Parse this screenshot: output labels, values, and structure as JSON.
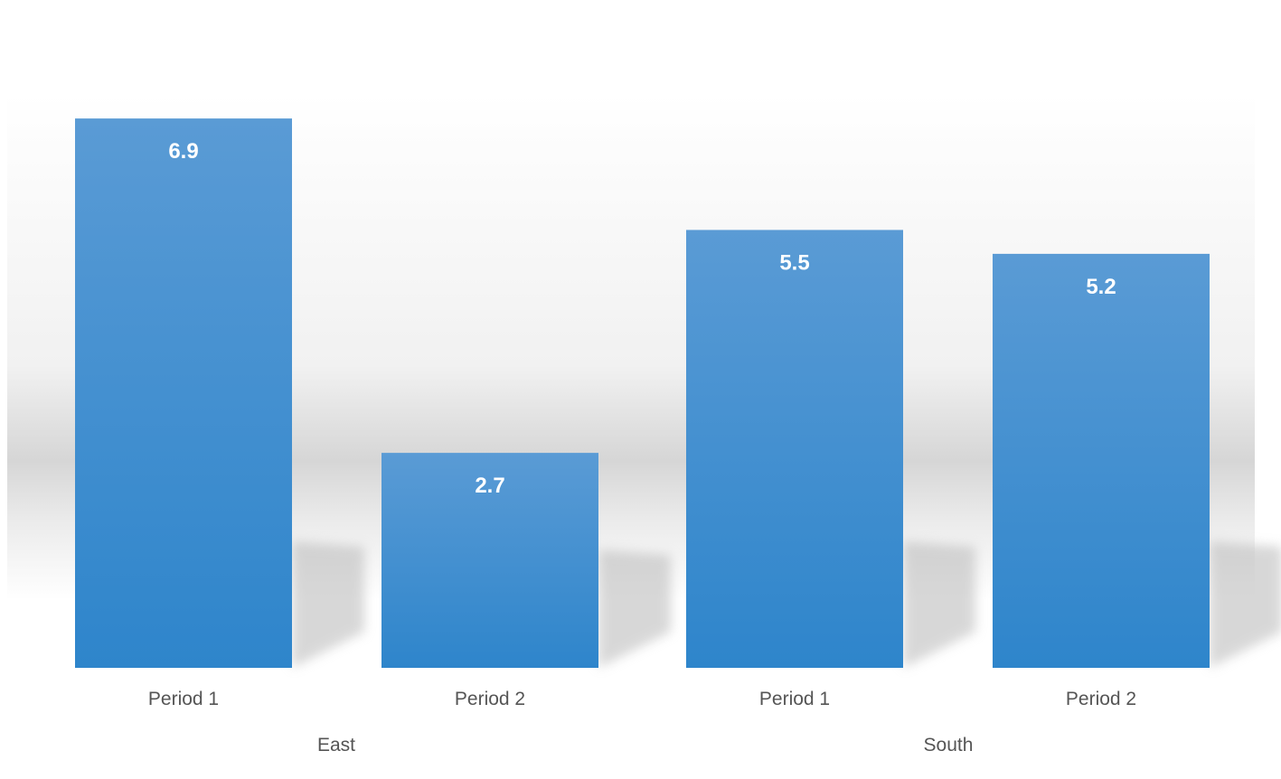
{
  "chart_data": {
    "type": "bar",
    "groups": [
      {
        "name": "East",
        "categories": [
          "Period 1",
          "Period 2"
        ],
        "values": [
          6.9,
          2.7
        ]
      },
      {
        "name": "South",
        "categories": [
          "Period 1",
          "Period 2"
        ],
        "values": [
          5.5,
          5.2
        ]
      }
    ],
    "data_labels": true,
    "grid": false,
    "legend": "none",
    "bar_color_top": "#5a9bd5",
    "bar_color_bottom": "#2e85cb",
    "label_color": "#ffffff",
    "axis_text_color": "#555555"
  }
}
